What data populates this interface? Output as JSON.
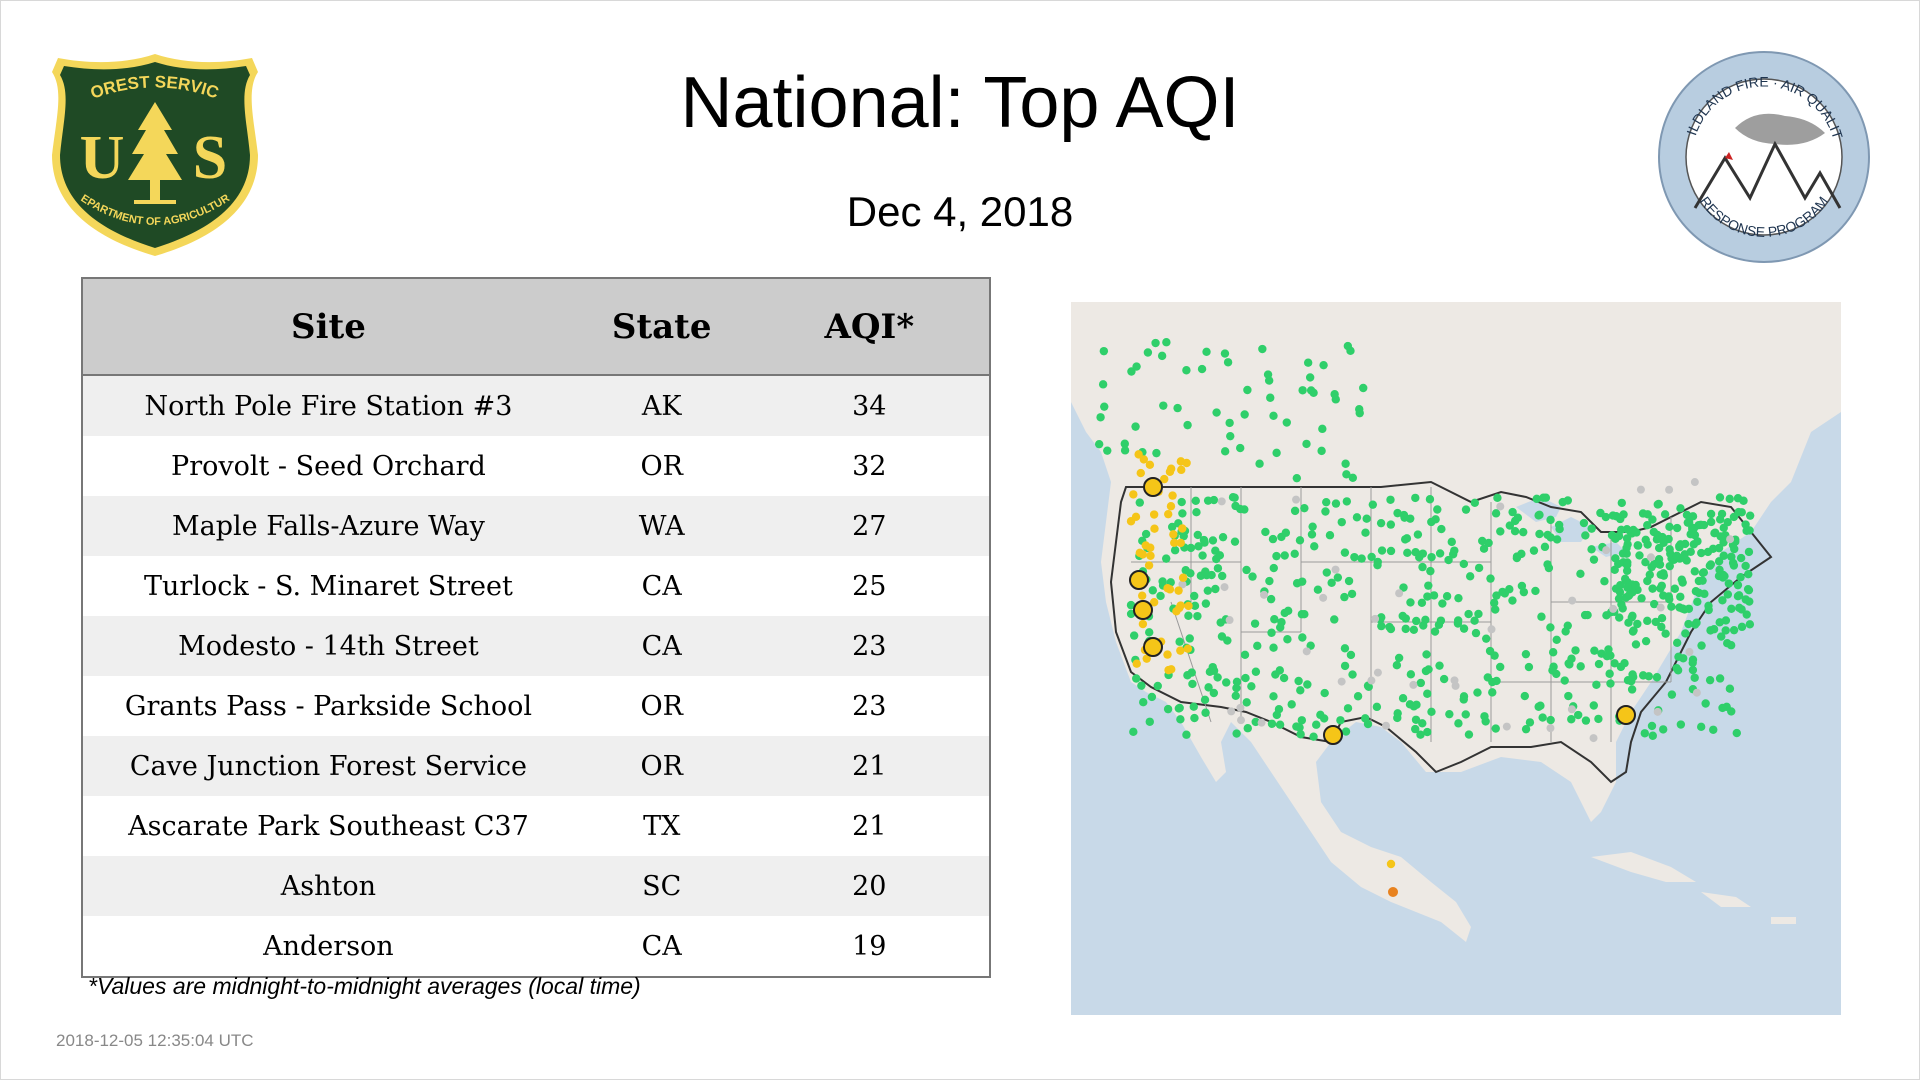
{
  "header": {
    "title": "National: Top AQI",
    "date": "Dec  4, 2018"
  },
  "logos": {
    "usfs": {
      "top_text": "FOREST SERVICE",
      "letters": "U S",
      "bottom_text": "DEPARTMENT OF AGRICULTURE",
      "color_green": "#1f4a25",
      "color_gold": "#f4d75a"
    },
    "wildland": {
      "top_text": "WILDLAND FIRE · AIR QUALITY",
      "bottom_text": "RESPONSE PROGRAM",
      "ring_color": "#b8cde0"
    }
  },
  "table": {
    "headers": [
      "Site",
      "State",
      "AQI*"
    ],
    "rows": [
      {
        "site": "North Pole Fire Station #3",
        "state": "AK",
        "aqi": 34
      },
      {
        "site": "Provolt - Seed Orchard",
        "state": "OR",
        "aqi": 32
      },
      {
        "site": "Maple Falls-Azure Way",
        "state": "WA",
        "aqi": 27
      },
      {
        "site": "Turlock - S. Minaret Street",
        "state": "CA",
        "aqi": 25
      },
      {
        "site": "Modesto - 14th Street",
        "state": "CA",
        "aqi": 23
      },
      {
        "site": "Grants Pass - Parkside School",
        "state": "OR",
        "aqi": 23
      },
      {
        "site": "Cave Junction Forest Service",
        "state": "OR",
        "aqi": 21
      },
      {
        "site": "Ascarate Park Southeast C37",
        "state": "TX",
        "aqi": 21
      },
      {
        "site": "Ashton",
        "state": "SC",
        "aqi": 20
      },
      {
        "site": "Anderson",
        "state": "CA",
        "aqi": 19
      }
    ]
  },
  "footnote": "*Values are midnight-to-midnight averages (local time)",
  "timestamp": "2018-12-05 12:35:04 UTC",
  "map": {
    "colors": {
      "water": "#c8d9e8",
      "land": "#ede9e4",
      "border": "#333333",
      "good": "#2fcf6a",
      "moderate": "#f5c518",
      "usg": "#e8821e",
      "nodata": "#c4c4c4"
    }
  }
}
